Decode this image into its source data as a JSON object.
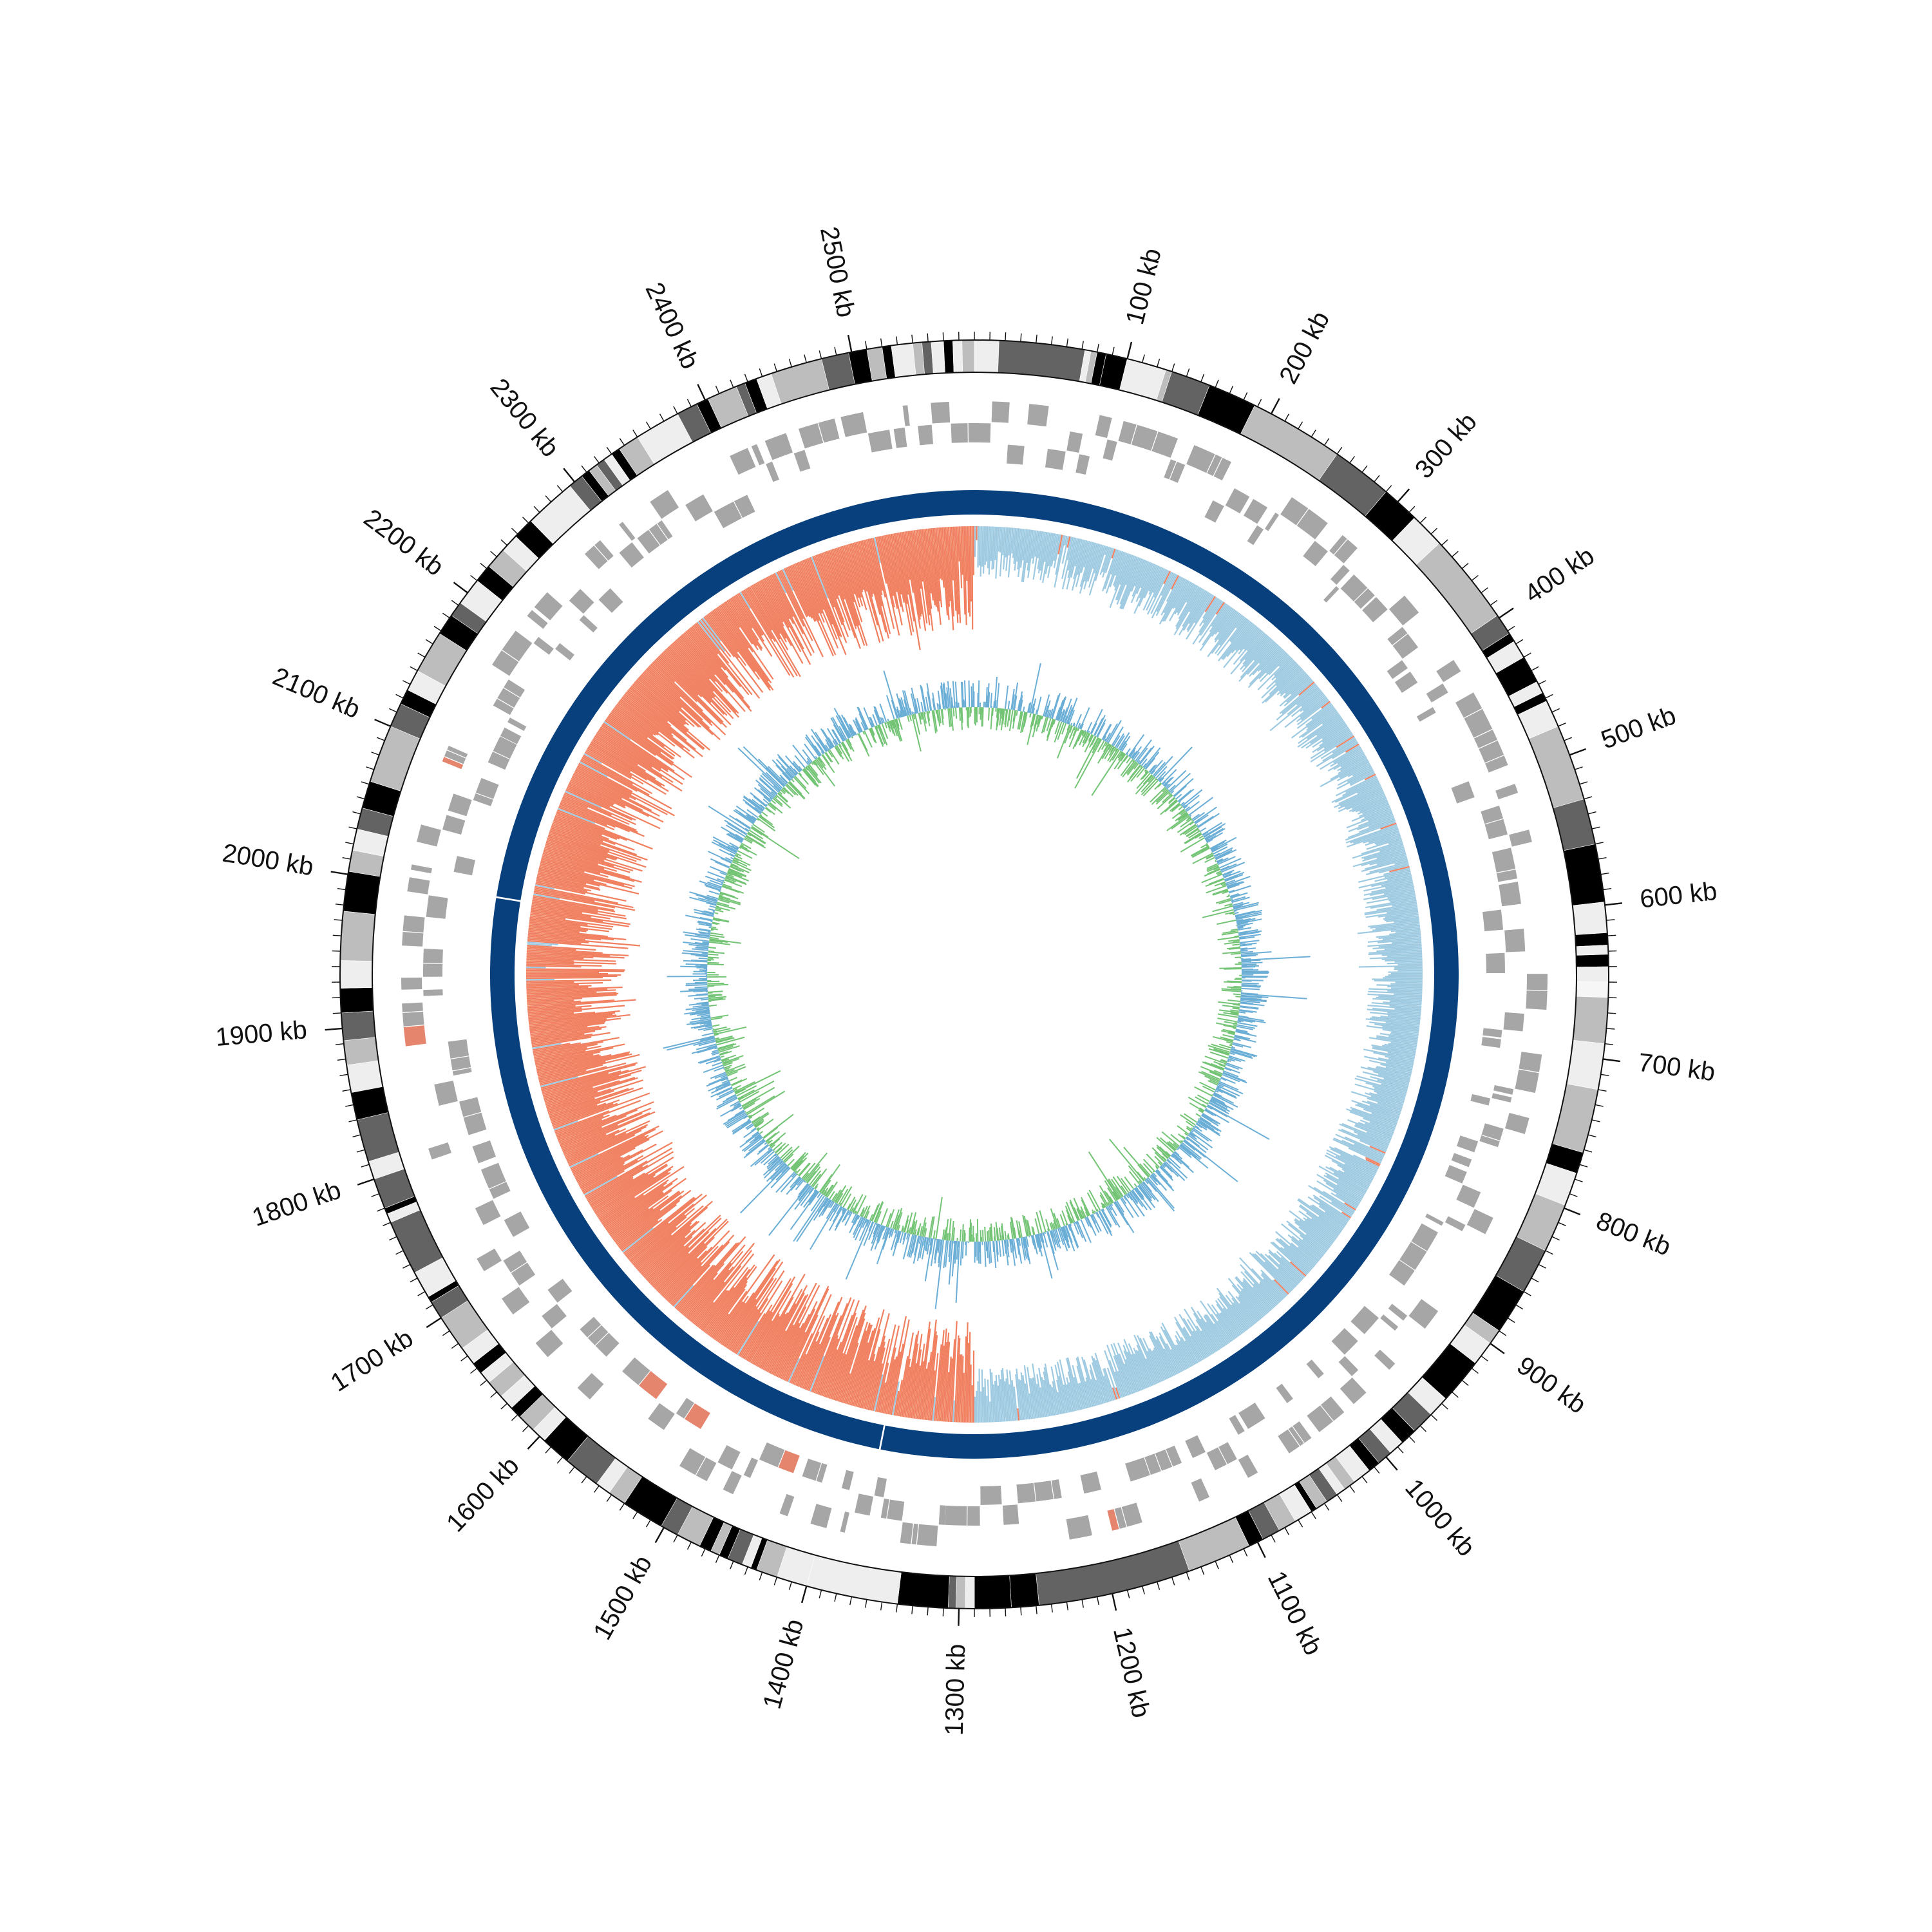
{
  "chart_data": {
    "type": "circos",
    "title": "",
    "genome_length_kb": 2580,
    "tick_unit": "kb",
    "ticks": [
      {
        "position_kb": 100,
        "label": "100 kb"
      },
      {
        "position_kb": 200,
        "label": "200 kb"
      },
      {
        "position_kb": 300,
        "label": "300 kb"
      },
      {
        "position_kb": 400,
        "label": "400 kb"
      },
      {
        "position_kb": 500,
        "label": "500 kb"
      },
      {
        "position_kb": 600,
        "label": "600 kb"
      },
      {
        "position_kb": 700,
        "label": "700 kb"
      },
      {
        "position_kb": 800,
        "label": "800 kb"
      },
      {
        "position_kb": 900,
        "label": "900 kb"
      },
      {
        "position_kb": 1000,
        "label": "1000 kb"
      },
      {
        "position_kb": 1100,
        "label": "1100 kb"
      },
      {
        "position_kb": 1200,
        "label": "1200 kb"
      },
      {
        "position_kb": 1300,
        "label": "1300 kb"
      },
      {
        "position_kb": 1400,
        "label": "1400 kb"
      },
      {
        "position_kb": 1500,
        "label": "1500 kb"
      },
      {
        "position_kb": 1600,
        "label": "1600 kb"
      },
      {
        "position_kb": 1700,
        "label": "1700 kb"
      },
      {
        "position_kb": 1800,
        "label": "1800 kb"
      },
      {
        "position_kb": 1900,
        "label": "1900 kb"
      },
      {
        "position_kb": 2000,
        "label": "2000 kb"
      },
      {
        "position_kb": 2100,
        "label": "2100 kb"
      },
      {
        "position_kb": 2200,
        "label": "2200 kb"
      },
      {
        "position_kb": 2300,
        "label": "2300 kb"
      },
      {
        "position_kb": 2400,
        "label": "2400 kb"
      },
      {
        "position_kb": 2500,
        "label": "2500 kb"
      }
    ],
    "minor_tick_interval_kb": 10,
    "tracks": [
      {
        "name": "",
        "type": "band",
        "segments": [
          {
            "start": 0,
            "end": 16,
            "shade": "lightgrey"
          },
          {
            "start": 16,
            "end": 72,
            "shade": "darkgrey"
          },
          {
            "start": 72,
            "end": 76,
            "shade": "lightgrey"
          },
          {
            "start": 76,
            "end": 80,
            "shade": "grey"
          },
          {
            "start": 80,
            "end": 86,
            "shade": "black"
          },
          {
            "start": 86,
            "end": 100,
            "shade": "black"
          },
          {
            "start": 100,
            "end": 126,
            "shade": "lightgrey"
          },
          {
            "start": 126,
            "end": 130,
            "shade": "grey"
          },
          {
            "start": 130,
            "end": 156,
            "shade": "darkgrey"
          },
          {
            "start": 156,
            "end": 188,
            "shade": "black"
          },
          {
            "start": 188,
            "end": 250,
            "shade": "grey"
          },
          {
            "start": 250,
            "end": 290,
            "shade": "darkgrey"
          },
          {
            "start": 290,
            "end": 315,
            "shade": "black"
          },
          {
            "start": 315,
            "end": 338,
            "shade": "lightgrey"
          },
          {
            "start": 338,
            "end": 398,
            "shade": "grey"
          },
          {
            "start": 398,
            "end": 412,
            "shade": "darkgrey"
          },
          {
            "start": 412,
            "end": 418,
            "shade": "black"
          },
          {
            "start": 418,
            "end": 430,
            "shade": "lightgrey"
          },
          {
            "start": 430,
            "end": 448,
            "shade": "black"
          },
          {
            "start": 448,
            "end": 456,
            "shade": "lightgrey"
          },
          {
            "start": 456,
            "end": 462,
            "shade": "black"
          },
          {
            "start": 462,
            "end": 480,
            "shade": "lightgrey"
          },
          {
            "start": 480,
            "end": 530,
            "shade": "grey"
          },
          {
            "start": 530,
            "end": 560,
            "shade": "darkgrey"
          },
          {
            "start": 560,
            "end": 598,
            "shade": "black"
          },
          {
            "start": 598,
            "end": 618,
            "shade": "lightgrey"
          },
          {
            "start": 618,
            "end": 626,
            "shade": "black"
          },
          {
            "start": 626,
            "end": 632,
            "shade": "lightgrey"
          },
          {
            "start": 632,
            "end": 640,
            "shade": "black"
          },
          {
            "start": 640,
            "end": 650,
            "shade": "lightgrey"
          },
          {
            "start": 650,
            "end": 660,
            "shade": "white"
          },
          {
            "start": 660,
            "end": 690,
            "shade": "grey"
          },
          {
            "start": 690,
            "end": 720,
            "shade": "lightgrey"
          },
          {
            "start": 720,
            "end": 762,
            "shade": "grey"
          },
          {
            "start": 762,
            "end": 776,
            "shade": "black"
          },
          {
            "start": 776,
            "end": 798,
            "shade": "lightgrey"
          },
          {
            "start": 798,
            "end": 830,
            "shade": "grey"
          },
          {
            "start": 830,
            "end": 860,
            "shade": "darkgrey"
          },
          {
            "start": 860,
            "end": 890,
            "shade": "black"
          },
          {
            "start": 890,
            "end": 900,
            "shade": "grey"
          },
          {
            "start": 900,
            "end": 916,
            "shade": "lightgrey"
          },
          {
            "start": 916,
            "end": 946,
            "shade": "black"
          },
          {
            "start": 946,
            "end": 960,
            "shade": "lightgrey"
          },
          {
            "start": 960,
            "end": 975,
            "shade": "darkgrey"
          },
          {
            "start": 975,
            "end": 986,
            "shade": "black"
          },
          {
            "start": 986,
            "end": 996,
            "shade": "lightgrey"
          },
          {
            "start": 996,
            "end": 1006,
            "shade": "darkgrey"
          },
          {
            "start": 1006,
            "end": 1014,
            "shade": "black"
          },
          {
            "start": 1014,
            "end": 1026,
            "shade": "lightgrey"
          },
          {
            "start": 1026,
            "end": 1034,
            "shade": "grey"
          },
          {
            "start": 1034,
            "end": 1040,
            "shade": "lightgrey"
          },
          {
            "start": 1040,
            "end": 1048,
            "shade": "darkgrey"
          },
          {
            "start": 1048,
            "end": 1056,
            "shade": "grey"
          },
          {
            "start": 1056,
            "end": 1060,
            "shade": "black"
          },
          {
            "start": 1060,
            "end": 1072,
            "shade": "lightgrey"
          },
          {
            "start": 1072,
            "end": 1084,
            "shade": "grey"
          },
          {
            "start": 1084,
            "end": 1096,
            "shade": "darkgrey"
          },
          {
            "start": 1096,
            "end": 1106,
            "shade": "black"
          },
          {
            "start": 1106,
            "end": 1148,
            "shade": "grey"
          },
          {
            "start": 1148,
            "end": 1248,
            "shade": "darkgrey"
          },
          {
            "start": 1248,
            "end": 1266,
            "shade": "black"
          },
          {
            "start": 1266,
            "end": 1290,
            "shade": "black"
          },
          {
            "start": 1290,
            "end": 1296,
            "shade": "lightgrey"
          },
          {
            "start": 1296,
            "end": 1302,
            "shade": "grey"
          },
          {
            "start": 1302,
            "end": 1307,
            "shade": "darkgrey"
          },
          {
            "start": 1307,
            "end": 1340,
            "shade": "black"
          },
          {
            "start": 1340,
            "end": 1400,
            "shade": "lightgrey"
          },
          {
            "start": 1400,
            "end": 1420,
            "shade": "lightgrey"
          },
          {
            "start": 1420,
            "end": 1434,
            "shade": "grey"
          },
          {
            "start": 1434,
            "end": 1438,
            "shade": "black"
          },
          {
            "start": 1438,
            "end": 1444,
            "shade": "lightgrey"
          },
          {
            "start": 1444,
            "end": 1454,
            "shade": "darkgrey"
          },
          {
            "start": 1454,
            "end": 1460,
            "shade": "black"
          },
          {
            "start": 1460,
            "end": 1466,
            "shade": "grey"
          },
          {
            "start": 1466,
            "end": 1474,
            "shade": "black"
          },
          {
            "start": 1474,
            "end": 1490,
            "shade": "grey"
          },
          {
            "start": 1490,
            "end": 1502,
            "shade": "darkgrey"
          },
          {
            "start": 1502,
            "end": 1530,
            "shade": "black"
          },
          {
            "start": 1530,
            "end": 1542,
            "shade": "grey"
          },
          {
            "start": 1542,
            "end": 1552,
            "shade": "lightgrey"
          },
          {
            "start": 1552,
            "end": 1576,
            "shade": "darkgrey"
          },
          {
            "start": 1576,
            "end": 1596,
            "shade": "black"
          },
          {
            "start": 1596,
            "end": 1606,
            "shade": "lightgrey"
          },
          {
            "start": 1606,
            "end": 1618,
            "shade": "grey"
          },
          {
            "start": 1618,
            "end": 1626,
            "shade": "black"
          },
          {
            "start": 1626,
            "end": 1636,
            "shade": "lightgrey"
          },
          {
            "start": 1636,
            "end": 1648,
            "shade": "grey"
          },
          {
            "start": 1648,
            "end": 1656,
            "shade": "lightgrey"
          },
          {
            "start": 1656,
            "end": 1664,
            "shade": "black"
          },
          {
            "start": 1664,
            "end": 1676,
            "shade": "lightgrey"
          },
          {
            "start": 1676,
            "end": 1700,
            "shade": "grey"
          },
          {
            "start": 1700,
            "end": 1712,
            "shade": "darkgrey"
          },
          {
            "start": 1712,
            "end": 1716,
            "shade": "black"
          },
          {
            "start": 1716,
            "end": 1734,
            "shade": "lightgrey"
          },
          {
            "start": 1734,
            "end": 1770,
            "shade": "darkgrey"
          },
          {
            "start": 1770,
            "end": 1776,
            "shade": "lightgrey"
          },
          {
            "start": 1776,
            "end": 1780,
            "shade": "black"
          },
          {
            "start": 1780,
            "end": 1800,
            "shade": "darkgrey"
          },
          {
            "start": 1800,
            "end": 1812,
            "shade": "lightgrey"
          },
          {
            "start": 1812,
            "end": 1840,
            "shade": "darkgrey"
          },
          {
            "start": 1840,
            "end": 1858,
            "shade": "black"
          },
          {
            "start": 1858,
            "end": 1876,
            "shade": "lightgrey"
          },
          {
            "start": 1876,
            "end": 1892,
            "shade": "grey"
          },
          {
            "start": 1892,
            "end": 1910,
            "shade": "darkgrey"
          },
          {
            "start": 1910,
            "end": 1926,
            "shade": "black"
          },
          {
            "start": 1926,
            "end": 1944,
            "shade": "lightgrey"
          },
          {
            "start": 1944,
            "end": 1976,
            "shade": "grey"
          },
          {
            "start": 1976,
            "end": 2002,
            "shade": "black"
          },
          {
            "start": 2002,
            "end": 2016,
            "shade": "grey"
          },
          {
            "start": 2016,
            "end": 2030,
            "shade": "lightgrey"
          },
          {
            "start": 2030,
            "end": 2044,
            "shade": "darkgrey"
          },
          {
            "start": 2044,
            "end": 2062,
            "shade": "black"
          },
          {
            "start": 2062,
            "end": 2100,
            "shade": "grey"
          },
          {
            "start": 2100,
            "end": 2116,
            "shade": "darkgrey"
          },
          {
            "start": 2116,
            "end": 2126,
            "shade": "black"
          },
          {
            "start": 2126,
            "end": 2140,
            "shade": "lightgrey"
          },
          {
            "start": 2140,
            "end": 2168,
            "shade": "grey"
          },
          {
            "start": 2168,
            "end": 2182,
            "shade": "black"
          },
          {
            "start": 2182,
            "end": 2192,
            "shade": "darkgrey"
          },
          {
            "start": 2192,
            "end": 2210,
            "shade": "lightgrey"
          },
          {
            "start": 2210,
            "end": 2222,
            "shade": "black"
          },
          {
            "start": 2222,
            "end": 2236,
            "shade": "grey"
          },
          {
            "start": 2236,
            "end": 2248,
            "shade": "lightgrey"
          },
          {
            "start": 2248,
            "end": 2262,
            "shade": "black"
          },
          {
            "start": 2262,
            "end": 2296,
            "shade": "lightgrey"
          },
          {
            "start": 2296,
            "end": 2306,
            "shade": "darkgrey"
          },
          {
            "start": 2306,
            "end": 2312,
            "shade": "black"
          },
          {
            "start": 2312,
            "end": 2318,
            "shade": "grey"
          },
          {
            "start": 2318,
            "end": 2324,
            "shade": "darkgrey"
          },
          {
            "start": 2324,
            "end": 2330,
            "shade": "lightgrey"
          },
          {
            "start": 2330,
            "end": 2336,
            "shade": "black"
          },
          {
            "start": 2336,
            "end": 2350,
            "shade": "grey"
          },
          {
            "start": 2350,
            "end": 2380,
            "shade": "lightgrey"
          },
          {
            "start": 2380,
            "end": 2394,
            "shade": "darkgrey"
          },
          {
            "start": 2394,
            "end": 2402,
            "shade": "black"
          },
          {
            "start": 2402,
            "end": 2422,
            "shade": "grey"
          },
          {
            "start": 2422,
            "end": 2428,
            "shade": "darkgrey"
          },
          {
            "start": 2428,
            "end": 2436,
            "shade": "black"
          },
          {
            "start": 2436,
            "end": 2446,
            "shade": "lightgrey"
          },
          {
            "start": 2446,
            "end": 2480,
            "shade": "grey"
          },
          {
            "start": 2480,
            "end": 2498,
            "shade": "darkgrey"
          },
          {
            "start": 2498,
            "end": 2510,
            "shade": "black"
          },
          {
            "start": 2510,
            "end": 2520,
            "shade": "grey"
          },
          {
            "start": 2520,
            "end": 2526,
            "shade": "black"
          },
          {
            "start": 2526,
            "end": 2540,
            "shade": "lightgrey"
          },
          {
            "start": 2540,
            "end": 2546,
            "shade": "grey"
          },
          {
            "start": 2546,
            "end": 2552,
            "shade": "darkgrey"
          },
          {
            "start": 2552,
            "end": 2560,
            "shade": "lightgrey"
          },
          {
            "start": 2560,
            "end": 2566,
            "shade": "black"
          },
          {
            "start": 2566,
            "end": 2572,
            "shade": "lightgrey"
          },
          {
            "start": 2572,
            "end": 2580,
            "shade": "grey"
          }
        ]
      },
      {
        "name": "",
        "type": "features",
        "color": "#a6a6a6",
        "highlight_color": "#e6856e"
      },
      {
        "name": "",
        "type": "ring",
        "color": "#08407e",
        "breaks_kb": [
          1370,
          2000
        ]
      },
      {
        "name": "",
        "type": "skew",
        "positive_color": "#9ecae1",
        "negative_color": "#f08060",
        "regions_kb": [
          {
            "start": 0,
            "end": 1290,
            "sign": "positive"
          },
          {
            "start": 1290,
            "end": 2580,
            "sign": "negative"
          }
        ]
      },
      {
        "name": "",
        "type": "content",
        "above_color": "#6baed6",
        "below_color": "#74c476"
      }
    ],
    "shade_colors": {
      "white": "#f6f6f6",
      "lightgrey": "#eeeeee",
      "grey": "#bdbdbd",
      "darkgrey": "#636363",
      "black": "#000000"
    }
  }
}
